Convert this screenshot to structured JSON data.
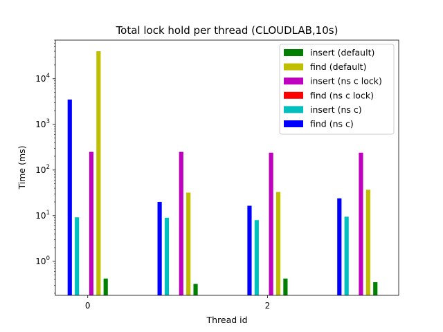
{
  "chart_data": {
    "type": "bar",
    "title": "Total lock hold per thread (CLOUDLAB,10s)",
    "xlabel": "Thread id",
    "ylabel": "Time (ms)",
    "yscale": "log",
    "ylim": [
      0.18,
      70000
    ],
    "categories": [
      0,
      1,
      2,
      3
    ],
    "x_tick_labels": [
      "0",
      "2"
    ],
    "y_ticks": [
      {
        "value": 1,
        "base": "10",
        "exp": "0"
      },
      {
        "value": 10,
        "base": "10",
        "exp": "1"
      },
      {
        "value": 100,
        "base": "10",
        "exp": "2"
      },
      {
        "value": 1000,
        "base": "10",
        "exp": "3"
      },
      {
        "value": 10000,
        "base": "10",
        "exp": "4"
      }
    ],
    "legend_placement": "top-right",
    "grid": false,
    "series": [
      {
        "name": "insert (default)",
        "color": "#008000",
        "values": [
          0.42,
          0.32,
          0.42,
          0.35
        ]
      },
      {
        "name": "find (default)",
        "color": "#bfbf00",
        "values": [
          40000,
          32,
          33,
          37
        ]
      },
      {
        "name": "insert (ns c lock)",
        "color": "#bf00bf",
        "values": [
          250,
          250,
          240,
          240
        ]
      },
      {
        "name": "find (ns c lock)",
        "color": "#ff0000",
        "values": [
          null,
          null,
          null,
          null
        ]
      },
      {
        "name": "insert (ns c)",
        "color": "#00bfbf",
        "values": [
          9.2,
          9,
          8,
          9.5
        ]
      },
      {
        "name": "find (ns c)",
        "color": "#0000ff",
        "values": [
          3500,
          20,
          16.5,
          24
        ]
      }
    ]
  }
}
